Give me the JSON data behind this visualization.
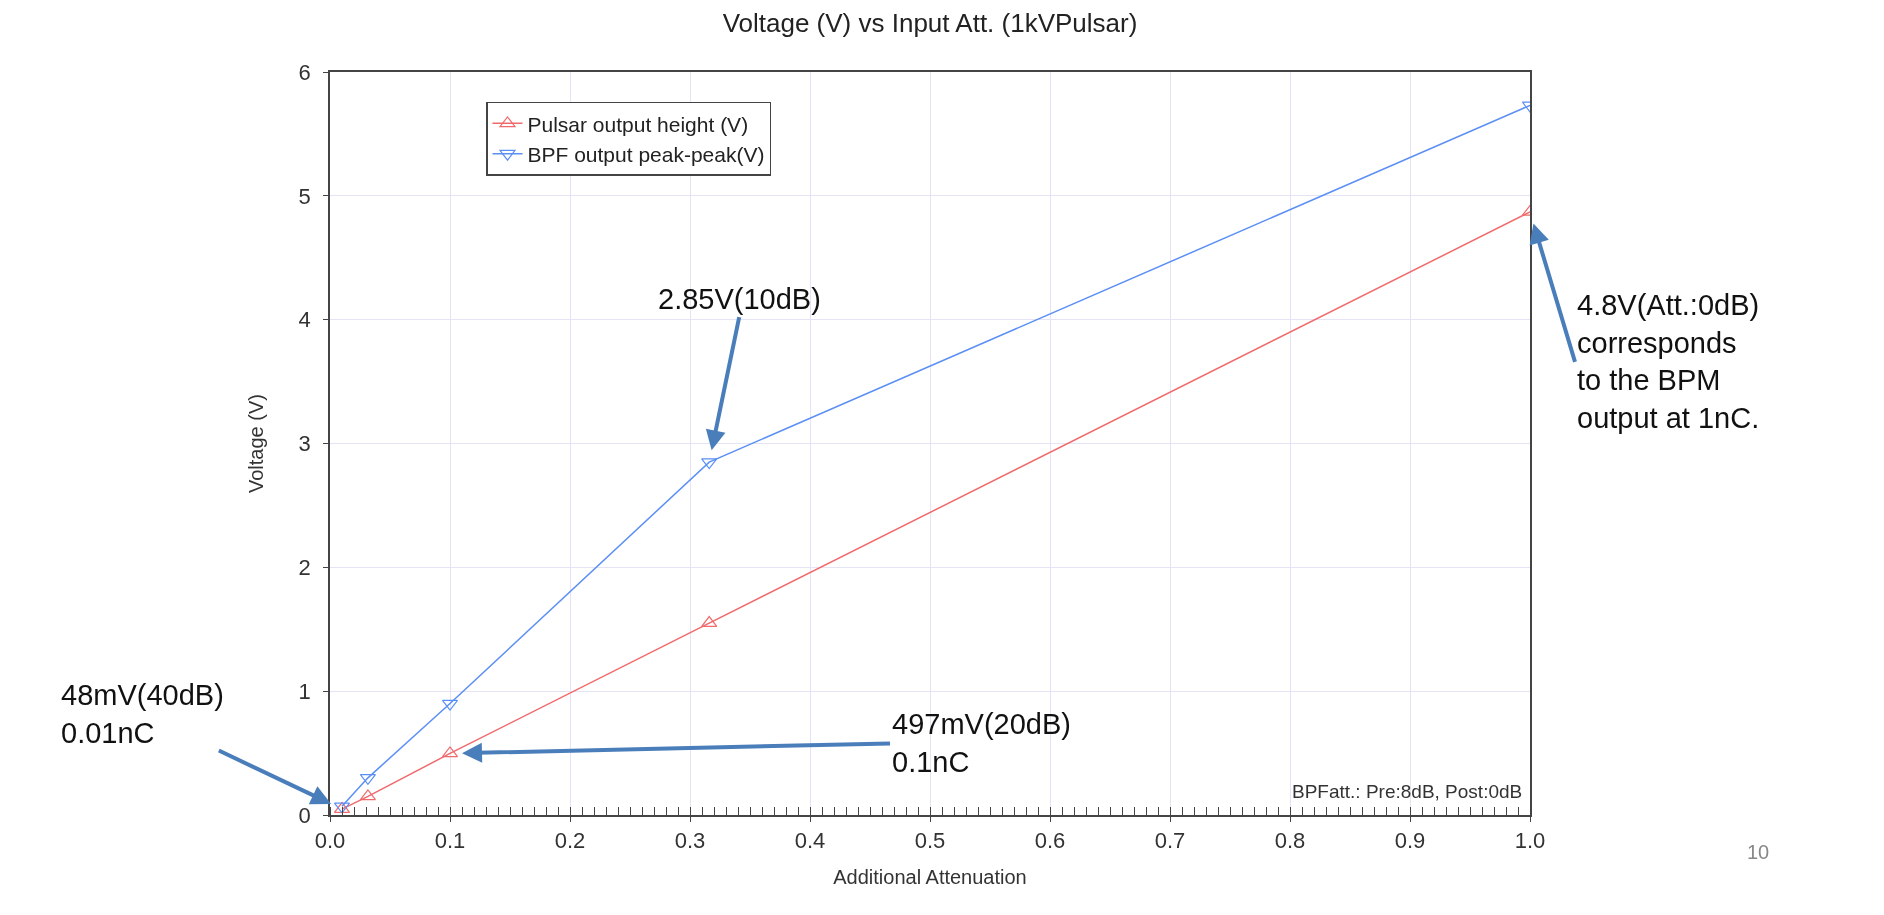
{
  "chart_data": {
    "type": "line",
    "title": "Voltage (V) vs Input Att. (1kVPulsar)",
    "xlabel": "Additional Attenuation",
    "ylabel": "Voltage (V)",
    "x": [
      0.01,
      0.0316,
      0.1,
      0.316,
      1.0
    ],
    "series": [
      {
        "name": "Pulsar output height (V)",
        "color": "#f06a6c",
        "values": [
          0.048,
          0.15,
          0.497,
          1.55,
          4.87
        ],
        "marker": "triangle"
      },
      {
        "name": "BPF output peak-peak(V)",
        "color": "#5b8ff5",
        "values": [
          0.07,
          0.3,
          0.9,
          2.85,
          5.73
        ],
        "marker": "triangle-down"
      }
    ],
    "xlim": [
      0,
      1.0
    ],
    "xticks": [
      {
        "value": 0,
        "label": "0.0"
      },
      {
        "value": 0.1,
        "label": "0.1"
      },
      {
        "value": 0.2,
        "label": "0.2"
      },
      {
        "value": 0.3,
        "label": "0.3"
      },
      {
        "value": 0.4,
        "label": "0.4"
      },
      {
        "value": 0.5,
        "label": "0.5"
      },
      {
        "value": 0.6,
        "label": "0.6"
      },
      {
        "value": 0.7,
        "label": "0.7"
      },
      {
        "value": 0.8,
        "label": "0.8"
      },
      {
        "value": 0.9,
        "label": "0.9"
      },
      {
        "value": 1.0,
        "label": "1.0"
      }
    ],
    "ylim": [
      0,
      6
    ],
    "yticks": [
      0,
      1,
      2,
      3,
      4,
      5,
      6
    ],
    "grid": true,
    "legend": "top left",
    "line_style": "solid",
    "annotations": [
      {
        "text": "48mV(40dB)\n0.01nC",
        "x": 0.01,
        "y": 0.048
      },
      {
        "text": "497mV(20dB)\n0.1nC",
        "x": 0.1,
        "y": 0.497
      },
      {
        "text": "2.85V(10dB)",
        "x": 0.316,
        "y": 2.85
      },
      {
        "text": "4.8V(Att.:0dB)\ncorresponds\nto the BPM\noutput at 1nC.",
        "x": 1.0,
        "y": 4.87
      },
      "BPFatt.: Pre:8dB, Post:0dB",
      "10"
    ]
  }
}
